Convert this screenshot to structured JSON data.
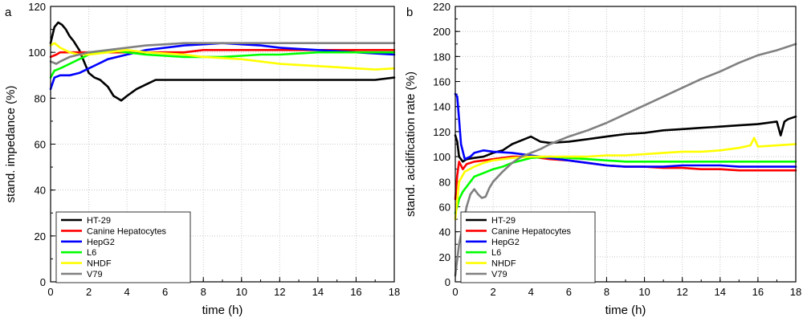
{
  "chart_data": [
    {
      "type": "line",
      "panel_label": "a",
      "xlabel": "time (h)",
      "ylabel": "stand. impedance (%)",
      "xlim": [
        0,
        18
      ],
      "ylim": [
        0,
        120
      ],
      "xticks": [
        "0",
        "2",
        "4",
        "6",
        "8",
        "10",
        "12",
        "14",
        "16",
        "18"
      ],
      "yticks": [
        "0",
        "20",
        "40",
        "60",
        "80",
        "100",
        "120"
      ],
      "legend_position": "bottom-left",
      "series": [
        {
          "name": "HT-29",
          "color": "#000000",
          "x": [
            0,
            0.2,
            0.4,
            0.6,
            0.8,
            1,
            1.2,
            1.5,
            1.8,
            2,
            2.3,
            2.6,
            3,
            3.3,
            3.5,
            3.7,
            4,
            4.5,
            5,
            5.5,
            6,
            7,
            8,
            9,
            10,
            11,
            12,
            13,
            14,
            15,
            16,
            17,
            18
          ],
          "y": [
            104,
            111,
            113,
            112,
            110,
            107,
            105,
            101,
            95,
            91,
            89,
            88,
            85,
            81,
            80,
            79,
            81,
            84,
            86,
            88,
            88,
            88,
            88,
            88,
            88,
            88,
            88,
            88,
            88,
            88,
            88,
            88,
            89
          ]
        },
        {
          "name": "Canine Hepatocytes",
          "color": "#ff0000",
          "x": [
            0,
            0.3,
            0.5,
            1,
            2,
            3,
            4,
            5,
            6,
            7,
            8,
            9,
            10,
            11,
            12,
            13,
            14,
            15,
            16,
            17,
            18
          ],
          "y": [
            98,
            99,
            100,
            100,
            100,
            100,
            100,
            100,
            100,
            100,
            101,
            101,
            101,
            101,
            101,
            101,
            101,
            101,
            101,
            101,
            101
          ]
        },
        {
          "name": "HepG2",
          "color": "#0000ff",
          "x": [
            0,
            0.2,
            0.5,
            1,
            1.5,
            2,
            2.5,
            3,
            4,
            5,
            6,
            7,
            8,
            9,
            10,
            11,
            12,
            13,
            14,
            15,
            16,
            17,
            18
          ],
          "y": [
            84,
            89,
            90,
            90,
            91,
            93,
            95,
            97,
            99,
            101,
            102,
            103,
            103.5,
            104,
            103.5,
            103,
            102,
            101.5,
            101,
            100.5,
            100,
            99.5,
            99
          ]
        },
        {
          "name": "L6",
          "color": "#00ff00",
          "x": [
            0,
            0.2,
            0.5,
            1,
            1.5,
            2,
            2.5,
            3,
            4,
            5,
            6,
            7,
            8,
            9,
            10,
            11,
            12,
            13,
            14,
            15,
            16,
            17,
            18
          ],
          "y": [
            89,
            92,
            93,
            95,
            97,
            99,
            100,
            101,
            100,
            99,
            98.5,
            98,
            98,
            98,
            98.5,
            99,
            99,
            99.5,
            100,
            100,
            100,
            100,
            100
          ]
        },
        {
          "name": "NHDF",
          "color": "#ffff00",
          "x": [
            0,
            0.2,
            0.5,
            1,
            1.5,
            2,
            3,
            4,
            5,
            6,
            7,
            8,
            9,
            10,
            11,
            12,
            13,
            14,
            15,
            16,
            17,
            18
          ],
          "y": [
            103,
            104,
            102,
            100,
            99,
            99,
            100,
            101,
            100,
            99.5,
            99,
            98,
            97.5,
            97,
            96,
            95,
            94.5,
            94,
            93.5,
            93,
            92.5,
            93
          ]
        },
        {
          "name": "V79",
          "color": "#808080",
          "x": [
            0,
            0.3,
            0.5,
            1,
            1.5,
            2,
            3,
            4,
            5,
            6,
            7,
            8,
            9,
            10,
            11,
            12,
            13,
            14,
            15,
            16,
            17,
            18
          ],
          "y": [
            96,
            95,
            96,
            98,
            99,
            100,
            101,
            102,
            103,
            103.5,
            104,
            104,
            104,
            104,
            104,
            104,
            104,
            104,
            104,
            104,
            104,
            104
          ]
        }
      ]
    },
    {
      "type": "line",
      "panel_label": "b",
      "xlabel": "time (h)",
      "ylabel": "stand. acidification rate (%)",
      "xlim": [
        0,
        18
      ],
      "ylim": [
        0,
        220
      ],
      "xticks": [
        "0",
        "2",
        "4",
        "6",
        "8",
        "10",
        "12",
        "14",
        "16",
        "18"
      ],
      "yticks": [
        "0",
        "20",
        "40",
        "60",
        "80",
        "100",
        "120",
        "140",
        "160",
        "180",
        "200",
        "220"
      ],
      "legend_position": "bottom-left",
      "series": [
        {
          "name": "HT-29",
          "color": "#000000",
          "x": [
            0,
            0.1,
            0.2,
            0.4,
            0.6,
            1,
            1.5,
            2,
            2.5,
            3,
            3.5,
            4,
            4.5,
            5,
            6,
            7,
            8,
            9,
            10,
            11,
            12,
            13,
            14,
            15,
            16,
            17,
            17.2,
            17.4,
            17.6,
            18
          ],
          "y": [
            117,
            112,
            100,
            96,
            98,
            99,
            100,
            103,
            105,
            110,
            113,
            116,
            112,
            111,
            112,
            114,
            116,
            118,
            119,
            121,
            122,
            123,
            124,
            125,
            126,
            128,
            117,
            128,
            130,
            132
          ]
        },
        {
          "name": "Canine Hepatocytes",
          "color": "#ff0000",
          "x": [
            0,
            0.1,
            0.2,
            0.4,
            0.6,
            1,
            1.5,
            2,
            3,
            4,
            5,
            6,
            7,
            8,
            9,
            10,
            11,
            12,
            13,
            14,
            15,
            16,
            17,
            18
          ],
          "y": [
            66,
            85,
            96,
            90,
            94,
            96,
            97,
            98,
            100,
            100,
            98,
            97,
            95,
            93,
            92,
            92,
            91,
            91,
            90,
            90,
            89,
            89,
            89,
            89
          ]
        },
        {
          "name": "HepG2",
          "color": "#0000ff",
          "x": [
            0,
            0.1,
            0.2,
            0.3,
            0.5,
            0.8,
            1,
            1.5,
            2,
            3,
            4,
            5,
            6,
            7,
            8,
            9,
            10,
            11,
            12,
            13,
            14,
            15,
            16,
            17,
            18
          ],
          "y": [
            150,
            148,
            130,
            110,
            98,
            100,
            103,
            105,
            104,
            103,
            101,
            99,
            97,
            95,
            93,
            92,
            92,
            92,
            93,
            93,
            93,
            92,
            92,
            92,
            92
          ]
        },
        {
          "name": "L6",
          "color": "#00ff00",
          "x": [
            0,
            0.1,
            0.2,
            0.4,
            0.6,
            0.8,
            1,
            1.5,
            2,
            2.5,
            3,
            4,
            5,
            6,
            7,
            8,
            9,
            10,
            11,
            12,
            13,
            14,
            15,
            16,
            17,
            18
          ],
          "y": [
            55,
            60,
            66,
            72,
            76,
            80,
            84,
            87,
            90,
            92,
            95,
            99,
            100,
            99,
            98,
            97,
            96,
            96,
            96,
            96,
            96,
            96,
            96,
            96,
            96,
            96
          ]
        },
        {
          "name": "NHDF",
          "color": "#ffff00",
          "x": [
            0,
            0.1,
            0.2,
            0.5,
            1,
            1.5,
            2,
            3,
            4,
            5,
            6,
            7,
            8,
            9,
            10,
            11,
            12,
            13,
            14,
            15,
            15.6,
            15.8,
            16,
            17,
            18
          ],
          "y": [
            50,
            65,
            80,
            88,
            92,
            95,
            97,
            99,
            100,
            100,
            100,
            100,
            101,
            101,
            102,
            103,
            104,
            104,
            105,
            107,
            109,
            115,
            108,
            109,
            110
          ]
        },
        {
          "name": "V79",
          "color": "#808080",
          "x": [
            0,
            0.2,
            0.4,
            0.6,
            0.8,
            1,
            1.2,
            1.4,
            1.6,
            1.8,
            2,
            2.5,
            3,
            3.5,
            4,
            4.5,
            5,
            6,
            7,
            8,
            9,
            10,
            11,
            12,
            13,
            14,
            15,
            16,
            17,
            18
          ],
          "y": [
            5,
            30,
            45,
            60,
            70,
            74,
            70,
            67,
            68,
            75,
            80,
            88,
            95,
            100,
            103,
            106,
            110,
            116,
            121,
            127,
            134,
            141,
            148,
            155,
            162,
            168,
            175,
            181,
            185,
            190
          ]
        }
      ]
    }
  ]
}
